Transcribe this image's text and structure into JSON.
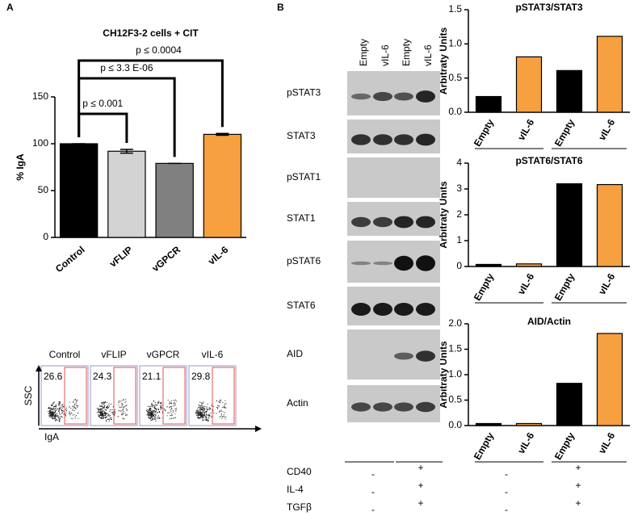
{
  "chart_data": [
    {
      "type": "bar",
      "title": "CH12F3-2 cells + CIT",
      "y_label": "% IgA",
      "categories": [
        "Control",
        "vFLIP",
        "vGPCR",
        "vIL-6"
      ],
      "values": [
        100,
        92,
        79,
        110
      ],
      "errors": [
        0,
        2,
        0,
        1
      ],
      "colors": [
        "#000000",
        "#d3d3d3",
        "#808080",
        "#f7a040"
      ],
      "ylim": [
        0,
        150
      ],
      "yticks": [
        0,
        50,
        100,
        150
      ],
      "annotations": [
        "p ≤ 0.001",
        "p ≤ 3.3 E-06",
        "p ≤ 0.0004"
      ]
    },
    {
      "type": "bar",
      "title": "pSTAT3/STAT3",
      "y_label": "Arbitraty Units",
      "categories": [
        "Empty",
        "vIL-6",
        "Empty",
        "vIL-6"
      ],
      "values": [
        0.23,
        0.81,
        0.61,
        1.11
      ],
      "colors": [
        "#000000",
        "#f7a040",
        "#000000",
        "#f7a040"
      ],
      "ylim": [
        0,
        1.5
      ],
      "yticks": [
        {
          "value": 0,
          "label": "0.0"
        },
        0.5,
        {
          "value": 1,
          "label": "1.0"
        },
        1.5
      ]
    },
    {
      "type": "bar",
      "title": "pSTAT6/STAT6",
      "y_label": "Arbitraty Units",
      "categories": [
        "Empty",
        "vIL-6",
        "Empty",
        "vIL-6"
      ],
      "values": [
        0.08,
        0.1,
        3.2,
        3.17
      ],
      "colors": [
        "#000000",
        "#f7a040",
        "#000000",
        "#f7a040"
      ],
      "ylim": [
        0,
        4
      ],
      "yticks": [
        0,
        1,
        2,
        3,
        4
      ]
    },
    {
      "type": "bar",
      "title": "AID/Actin",
      "y_label": "Arbitraty Units",
      "categories": [
        "Empty",
        "vIL-6",
        "Empty",
        "vIL-6"
      ],
      "values": [
        0.04,
        0.04,
        0.83,
        1.81
      ],
      "colors": [
        "#000000",
        "#f7a040",
        "#000000",
        "#f7a040"
      ],
      "ylim": [
        0,
        2
      ],
      "yticks": [
        {
          "value": 0,
          "label": "0.0"
        },
        0.5,
        {
          "value": 1,
          "label": "1.0"
        },
        1.5,
        {
          "value": 2,
          "label": "2.0"
        }
      ]
    }
  ],
  "panels": [
    "A",
    "B"
  ],
  "flow": {
    "samples": [
      "Control",
      "vFLIP",
      "vGPCR",
      "vIL-6"
    ],
    "percents": [
      "26.6",
      "24.3",
      "21.1",
      "29.8"
    ],
    "y_axis": "SSC",
    "x_axis": "IgA"
  },
  "blot": {
    "lanes": [
      "Empty",
      "vIL-6",
      "Empty",
      "vIL-6"
    ],
    "rows": [
      "pSTAT3",
      "STAT3",
      "pSTAT1",
      "STAT1",
      "pSTAT6",
      "STAT6",
      "AID",
      "Actin"
    ]
  },
  "treatments": {
    "labels": [
      "CD40",
      "IL-4",
      "TGFβ"
    ],
    "blot": [
      [
        "-",
        "+"
      ],
      [
        "-",
        "+"
      ],
      [
        "-",
        "+"
      ]
    ],
    "chart": [
      [
        "-",
        "+"
      ],
      [
        "-",
        "+"
      ],
      [
        "-",
        "+"
      ]
    ]
  }
}
